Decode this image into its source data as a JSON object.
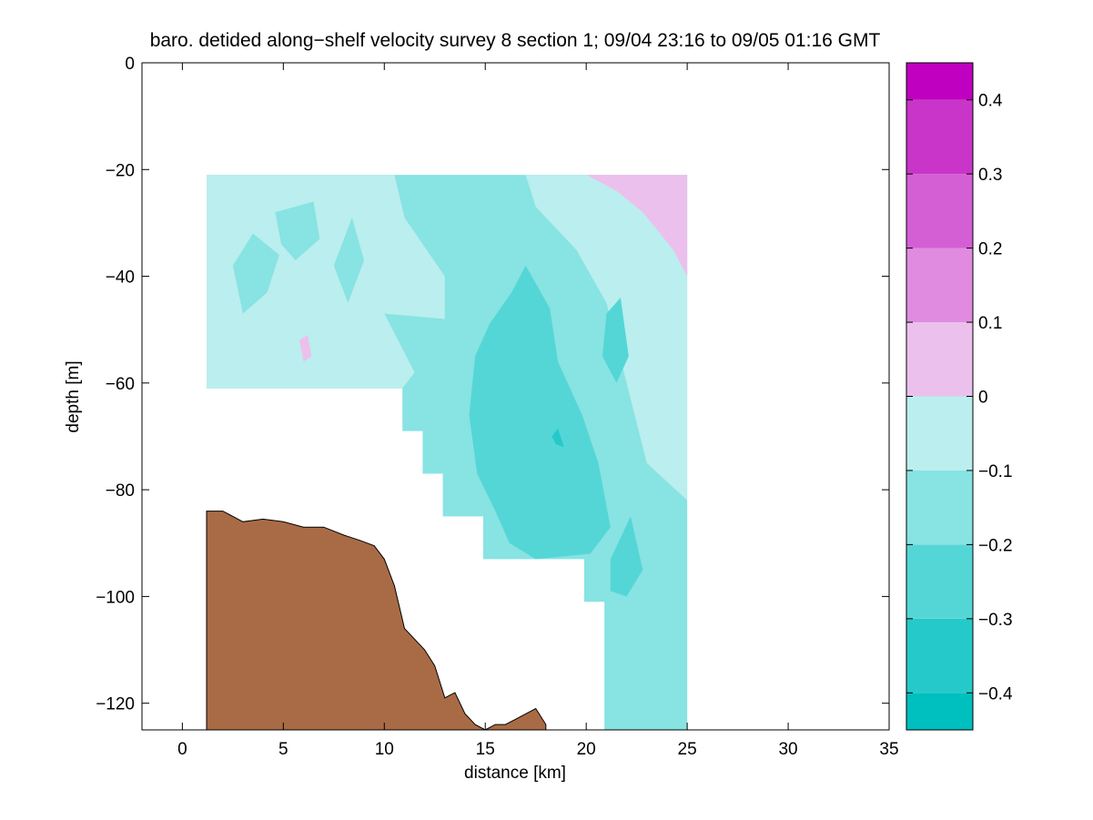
{
  "chart_data": {
    "type": "heatmap",
    "title": "baro. detided along−shelf velocity survey 8 section 1; 09/04 23:16 to 09/05 01:16 GMT",
    "xlabel": "distance [km]",
    "ylabel": "depth [m]",
    "xlim": [
      -2,
      35
    ],
    "ylim": [
      -125,
      0
    ],
    "xticks": [
      0,
      5,
      10,
      15,
      20,
      25,
      30,
      35
    ],
    "xtick_labels": [
      "0",
      "5",
      "10",
      "15",
      "20",
      "25",
      "30",
      "35"
    ],
    "yticks": [
      0,
      -20,
      -40,
      -60,
      -80,
      -100,
      -120
    ],
    "ytick_labels": [
      "0",
      "−20",
      "−40",
      "−60",
      "−80",
      "−100",
      "−120"
    ],
    "colorbar": {
      "levels": [
        -0.45,
        -0.4,
        -0.3,
        -0.2,
        -0.1,
        0,
        0.1,
        0.2,
        0.3,
        0.4,
        0.45
      ],
      "tick_values": [
        0.4,
        0.3,
        0.2,
        0.1,
        0,
        -0.1,
        -0.2,
        -0.3,
        -0.4
      ],
      "tick_labels": [
        "0.4",
        "0.3",
        "0.2",
        "0.1",
        "0",
        "−0.1",
        "−0.2",
        "−0.3",
        "−0.4"
      ],
      "colors": [
        "#00bfbf",
        "#26c9c9",
        "#55d6d6",
        "#88e3e3",
        "#bbeeee",
        "#ecc0ec",
        "#e08be0",
        "#d45fd4",
        "#c935c9",
        "#c000c0"
      ]
    },
    "data_region": {
      "x": [
        1.2,
        25
      ],
      "y": [
        -21,
        -125
      ],
      "dominant_range": [
        -0.2,
        -0.1
      ],
      "shallow_band_range": [
        -0.1,
        0
      ],
      "core_range": [
        -0.3,
        -0.2
      ],
      "core_x": [
        14.5,
        21
      ],
      "core_y": [
        -45,
        -95
      ],
      "positive_corner_range": [
        0,
        0.1
      ],
      "positive_corner_x": [
        20,
        25
      ],
      "positive_corner_y": [
        -21,
        -40
      ]
    },
    "bathymetry": {
      "fill_color": "#a96b45",
      "x": [
        1.2,
        2,
        3,
        4,
        5,
        6,
        7,
        8,
        8.8,
        9.5,
        10,
        10.5,
        11,
        11.5,
        12,
        12.5,
        13,
        13.5,
        14,
        14.5,
        15,
        15.5,
        16,
        16.5,
        17,
        17.5,
        18
      ],
      "depth": [
        -84,
        -84,
        -86,
        -85.5,
        -86,
        -87,
        -87,
        -88.5,
        -89.5,
        -90.5,
        -93,
        -98,
        -106,
        -108,
        -110,
        -113,
        -119,
        -118,
        -122,
        -124,
        -125,
        -124,
        -124,
        -123,
        -122,
        -121,
        -124
      ]
    }
  }
}
